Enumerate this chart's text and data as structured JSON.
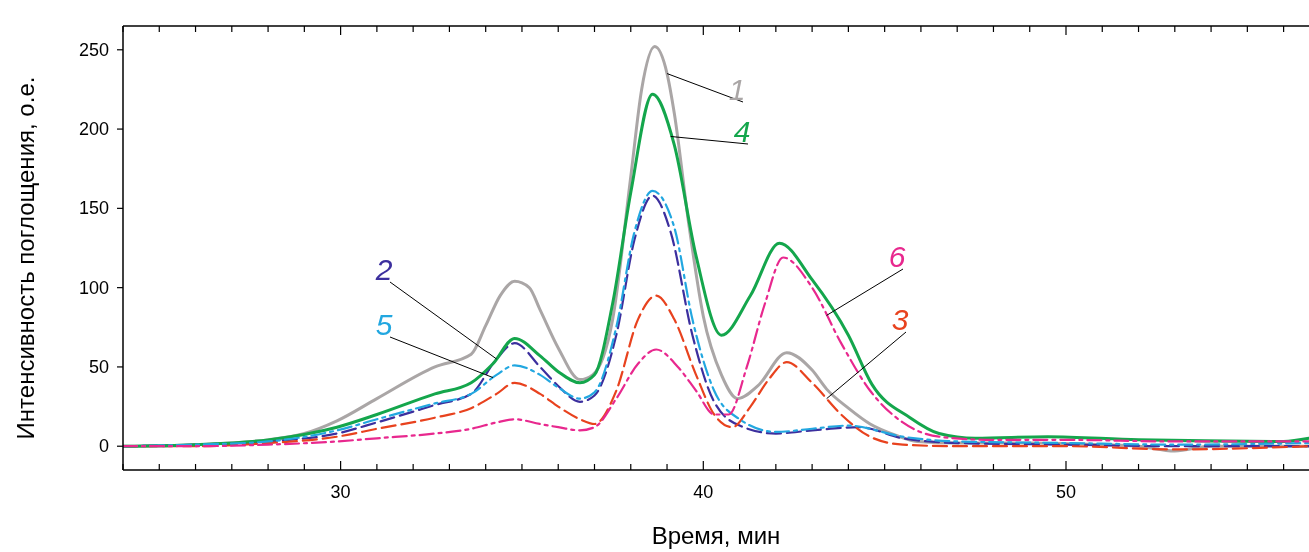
{
  "chart_data": {
    "type": "line",
    "xlabel": "Время, мин",
    "ylabel": "Интенсивность поглощения, о.е.",
    "xlim": [
      24,
      56.7
    ],
    "ylim": [
      -15,
      265
    ],
    "xticks": [
      {
        "value": 24,
        "label": null
      },
      {
        "value": 25,
        "label": null
      },
      {
        "value": 26,
        "label": null
      },
      {
        "value": 27,
        "label": null
      },
      {
        "value": 28,
        "label": null
      },
      {
        "value": 29,
        "label": null
      },
      30,
      {
        "value": 31,
        "label": null
      },
      {
        "value": 32,
        "label": null
      },
      {
        "value": 33,
        "label": null
      },
      {
        "value": 34,
        "label": null
      },
      {
        "value": 35,
        "label": null
      },
      {
        "value": 36,
        "label": null
      },
      {
        "value": 37,
        "label": null
      },
      {
        "value": 38,
        "label": null
      },
      {
        "value": 39,
        "label": null
      },
      40,
      {
        "value": 41,
        "label": null
      },
      {
        "value": 42,
        "label": null
      },
      {
        "value": 43,
        "label": null
      },
      {
        "value": 44,
        "label": null
      },
      {
        "value": 45,
        "label": null
      },
      {
        "value": 46,
        "label": null
      },
      {
        "value": 47,
        "label": null
      },
      {
        "value": 48,
        "label": null
      },
      {
        "value": 49,
        "label": null
      },
      50,
      {
        "value": 51,
        "label": null
      },
      {
        "value": 52,
        "label": null
      },
      {
        "value": 53,
        "label": null
      },
      {
        "value": 54,
        "label": null
      },
      {
        "value": 55,
        "label": null
      },
      {
        "value": 56,
        "label": null
      }
    ],
    "yticks": [
      0,
      50,
      100,
      150,
      200,
      250
    ],
    "grid": false,
    "series": [
      {
        "name": "1",
        "color": "#aaa6a6",
        "line_style": "solid",
        "x": [
          24,
          26,
          28,
          29,
          29.9,
          31,
          32.6,
          33.6,
          34,
          34.4,
          34.8,
          35.2,
          35.5,
          36,
          36.6,
          36.95,
          37.5,
          38,
          38.3,
          38.66,
          39,
          39.2,
          39.6,
          40,
          40.5,
          40.95,
          41.5,
          42.3,
          43,
          43.4,
          44,
          44.6,
          45.3,
          45.9,
          47,
          49,
          51,
          52,
          53,
          54,
          55,
          56.7
        ],
        "values": [
          0,
          1,
          4,
          8,
          16,
          30,
          50,
          58,
          76,
          95,
          104,
          100,
          86,
          62,
          42,
          45,
          80,
          170,
          225,
          252,
          235,
          210,
          140,
          82,
          45,
          30,
          38,
          59,
          48,
          36,
          24,
          14,
          7,
          3,
          2,
          2,
          1,
          0,
          -3,
          0,
          0,
          0
        ]
      },
      {
        "name": "2",
        "color": "#3c2f9e",
        "line_style": "dashed",
        "x": [
          24,
          26,
          28,
          29.9,
          31,
          32.6,
          33.6,
          34.3,
          34.8,
          35.5,
          36,
          36.6,
          37,
          37.6,
          38.1,
          38.6,
          39.1,
          39.7,
          40.3,
          41,
          42,
          43,
          44.3,
          45.5,
          47,
          50,
          53,
          56.7
        ],
        "values": [
          0,
          1,
          3,
          8,
          15,
          26,
          33,
          55,
          65,
          50,
          38,
          28,
          32,
          70,
          130,
          158,
          135,
          70,
          28,
          13,
          8,
          10,
          12,
          5,
          2,
          1,
          0,
          0
        ]
      },
      {
        "name": "3",
        "color": "#e8421e",
        "line_style": "dashed",
        "x": [
          24,
          26,
          28,
          29.9,
          31,
          32.6,
          33.6,
          34.3,
          34.8,
          35.5,
          36,
          36.6,
          37,
          37.6,
          38.2,
          38.7,
          39.2,
          39.8,
          40.3,
          40.8,
          41.3,
          41.8,
          42.3,
          43,
          43.8,
          44.6,
          45.5,
          47,
          50,
          53,
          56.7
        ],
        "values": [
          0,
          0,
          2,
          6,
          11,
          18,
          24,
          33,
          40,
          33,
          25,
          17,
          14,
          35,
          80,
          95,
          80,
          45,
          20,
          12,
          25,
          42,
          53,
          40,
          20,
          6,
          1,
          0,
          0,
          -2,
          0
        ]
      },
      {
        "name": "4",
        "color": "#14a64c",
        "line_style": "solid",
        "x": [
          24,
          26,
          28,
          29.9,
          31,
          32.6,
          33.6,
          34.2,
          34.8,
          35.5,
          36,
          36.6,
          37,
          37.5,
          38,
          38.6,
          39.2,
          39.8,
          40.5,
          41.3,
          42.1,
          43,
          44,
          44.65,
          45.7,
          46.5,
          47.5,
          49.5,
          52,
          56,
          56.7
        ],
        "values": [
          0,
          1,
          4,
          12,
          20,
          33,
          40,
          52,
          68,
          57,
          47,
          40,
          45,
          90,
          160,
          222,
          190,
          120,
          70,
          95,
          128,
          105,
          70,
          39,
          18,
          8,
          5,
          6,
          4,
          3,
          5
        ]
      },
      {
        "name": "5",
        "color": "#22a7e0",
        "line_style": "dashdot",
        "x": [
          24,
          26,
          28,
          29.9,
          31,
          32.6,
          33.6,
          34.3,
          34.8,
          35.5,
          36,
          36.6,
          37,
          37.6,
          38.1,
          38.6,
          39.2,
          39.7,
          40.3,
          41,
          42,
          43,
          44,
          45.5,
          47,
          50,
          53,
          56.7
        ],
        "values": [
          0,
          1,
          3,
          10,
          17,
          27,
          33,
          45,
          51,
          45,
          37,
          30,
          34,
          75,
          135,
          161,
          138,
          80,
          35,
          17,
          9,
          11,
          13,
          6,
          3,
          2,
          1,
          2
        ]
      },
      {
        "name": "6",
        "color": "#e8288e",
        "line_style": "dashdot",
        "x": [
          24,
          26,
          28,
          29.9,
          31,
          32.6,
          33.6,
          34.3,
          34.8,
          35.5,
          36,
          36.6,
          37,
          37.6,
          38.2,
          38.7,
          39.3,
          39.8,
          40.3,
          40.7,
          41.2,
          41.7,
          42.2,
          43,
          43.8,
          44.6,
          45.5,
          46.5,
          48,
          50,
          53,
          56.7
        ],
        "values": [
          0,
          0,
          1,
          3,
          5,
          8,
          11,
          15,
          17,
          14,
          12,
          10,
          12,
          30,
          52,
          61,
          50,
          35,
          20,
          20,
          50,
          90,
          119,
          100,
          65,
          35,
          15,
          6,
          4,
          4,
          3,
          3
        ]
      }
    ]
  }
}
